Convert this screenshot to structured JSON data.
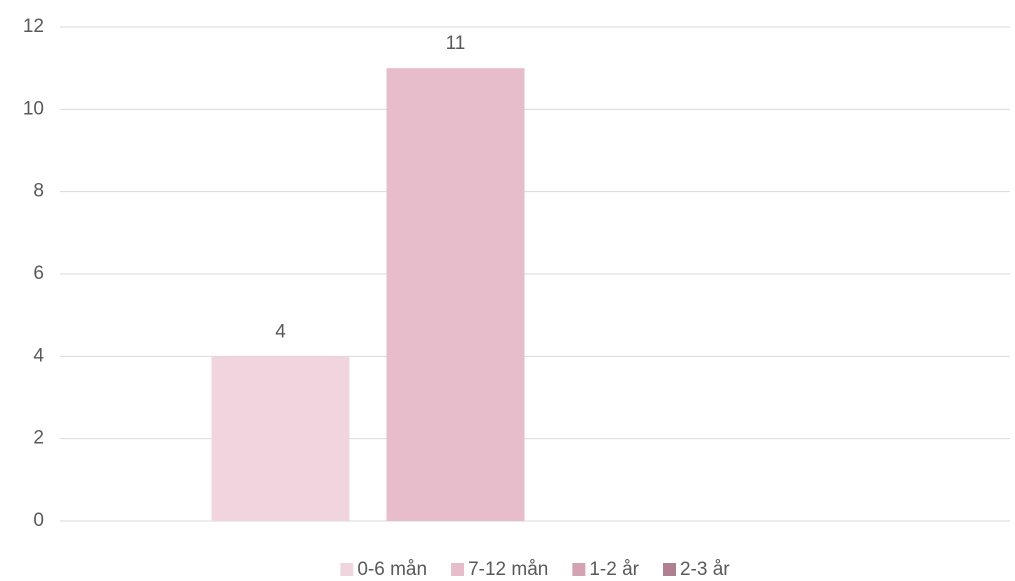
{
  "chart_data": {
    "type": "bar",
    "categories": [
      null
    ],
    "series": [
      {
        "name": "0-6 mån",
        "color": "#f0d5de",
        "values": [
          4
        ]
      },
      {
        "name": "7-12 mån",
        "color": "#e8bdcb",
        "values": [
          11
        ]
      },
      {
        "name": "1-2 år",
        "color": "#d3a2b3",
        "values": [
          null
        ]
      },
      {
        "name": "2-3 år",
        "color": "#b07f91",
        "values": [
          null
        ]
      }
    ],
    "ylim": [
      0,
      12
    ],
    "yticks": [
      0,
      2,
      4,
      6,
      8,
      10,
      12
    ],
    "grid": true,
    "legend": "bottom"
  }
}
